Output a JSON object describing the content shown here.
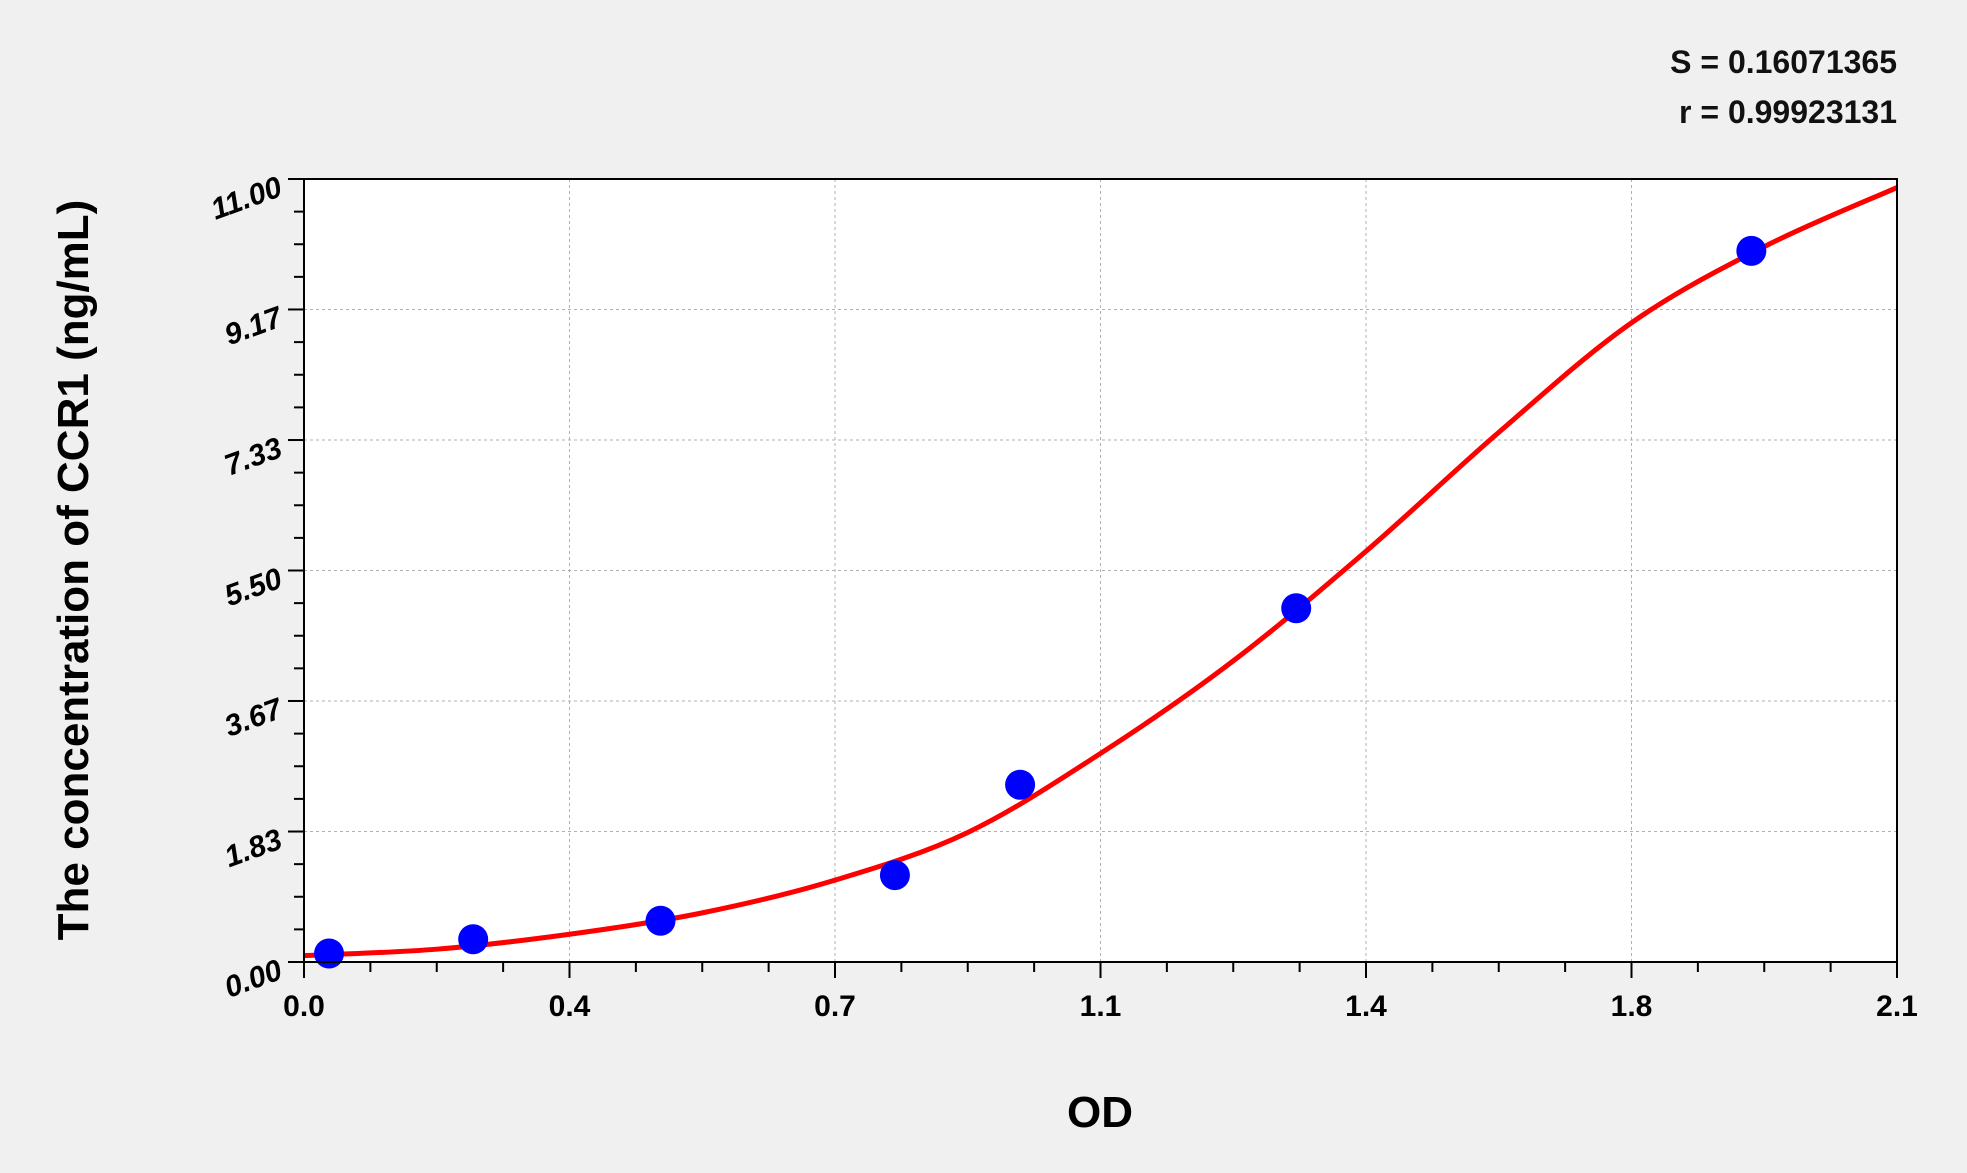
{
  "chart_data": {
    "type": "scatter",
    "title": "",
    "xlabel": "OD",
    "ylabel": "The concentration of CCR1 (ng/mL)",
    "xlim": [
      0,
      2.1
    ],
    "ylim": [
      0,
      11
    ],
    "x_ticks": [
      0,
      0.35,
      0.7,
      1.05,
      1.4,
      1.75,
      2.1
    ],
    "x_tick_labels": [
      "0.0",
      "0.4",
      "0.7",
      "1.1",
      "1.4",
      "1.8",
      "2.1"
    ],
    "y_ticks": [
      0,
      1.833,
      3.667,
      5.5,
      7.333,
      9.167,
      11
    ],
    "y_tick_labels": [
      "0.00",
      "1.83",
      "3.67",
      "5.50",
      "7.33",
      "9.17",
      "11.00"
    ],
    "grid": true,
    "annotations": [
      "S = 0.16071365",
      "r = 0.99923131"
    ],
    "points": {
      "x": [
        0.033,
        0.223,
        0.47,
        0.779,
        0.944,
        1.308,
        1.908
      ],
      "y": [
        0.12,
        0.32,
        0.58,
        1.22,
        2.49,
        4.97,
        9.99
      ],
      "color": "#0000ff"
    },
    "fit_curve": {
      "x": [
        0,
        0.175,
        0.35,
        0.525,
        0.7,
        0.875,
        1.05,
        1.225,
        1.4,
        1.575,
        1.75,
        1.925,
        2.1
      ],
      "y": [
        0.09,
        0.18,
        0.39,
        0.69,
        1.15,
        1.82,
        2.93,
        4.23,
        5.77,
        7.44,
        8.98,
        10.05,
        10.88
      ],
      "color": "#ff0000"
    }
  }
}
